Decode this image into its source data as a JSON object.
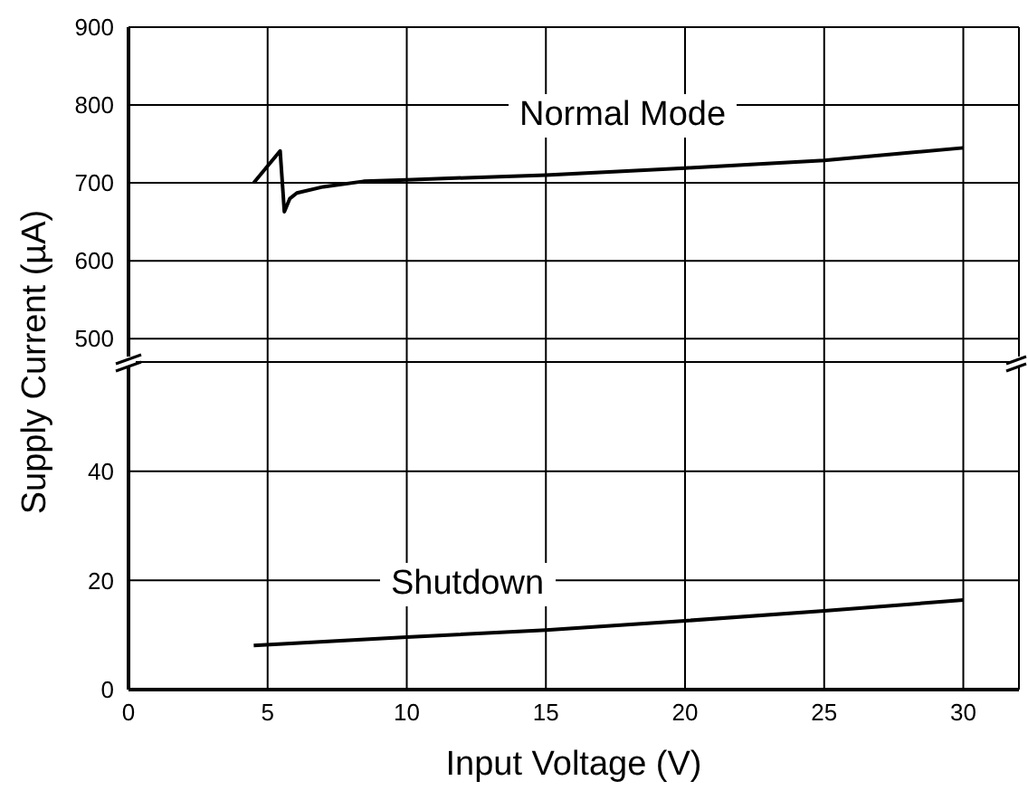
{
  "chart_data": [
    {
      "type": "line",
      "ylabel": "Supply Current (µA)",
      "xlim": [
        0,
        32
      ],
      "xticks": [
        0,
        5,
        10,
        15,
        20,
        25,
        30
      ],
      "ylim": [
        470,
        900
      ],
      "yticks": [
        500,
        600,
        700,
        800,
        900
      ],
      "tick_labels": "y",
      "grid": true,
      "series": [
        {
          "name": "Normal Mode",
          "color": "#000000",
          "x": [
            4.5,
            5.45,
            5.6,
            5.8,
            6.05,
            7,
            8.45,
            10,
            15,
            20,
            25,
            30
          ],
          "values": [
            700,
            741,
            663,
            680,
            687,
            695,
            702,
            704,
            710,
            719,
            729,
            745
          ]
        }
      ]
    },
    {
      "type": "line",
      "xlabel": "Input Voltage (V)",
      "xlim": [
        0,
        32
      ],
      "xticks": [
        0,
        5,
        10,
        15,
        20,
        25,
        30
      ],
      "ylim": [
        0,
        60
      ],
      "yticks": [
        0,
        20,
        40
      ],
      "grid": true,
      "series": [
        {
          "name": "Shutdown",
          "color": "#000000",
          "x": [
            4.5,
            10,
            15,
            20,
            25,
            30
          ],
          "values": [
            8.1,
            9.6,
            10.9,
            12.6,
            14.4,
            16.4
          ]
        }
      ]
    }
  ]
}
